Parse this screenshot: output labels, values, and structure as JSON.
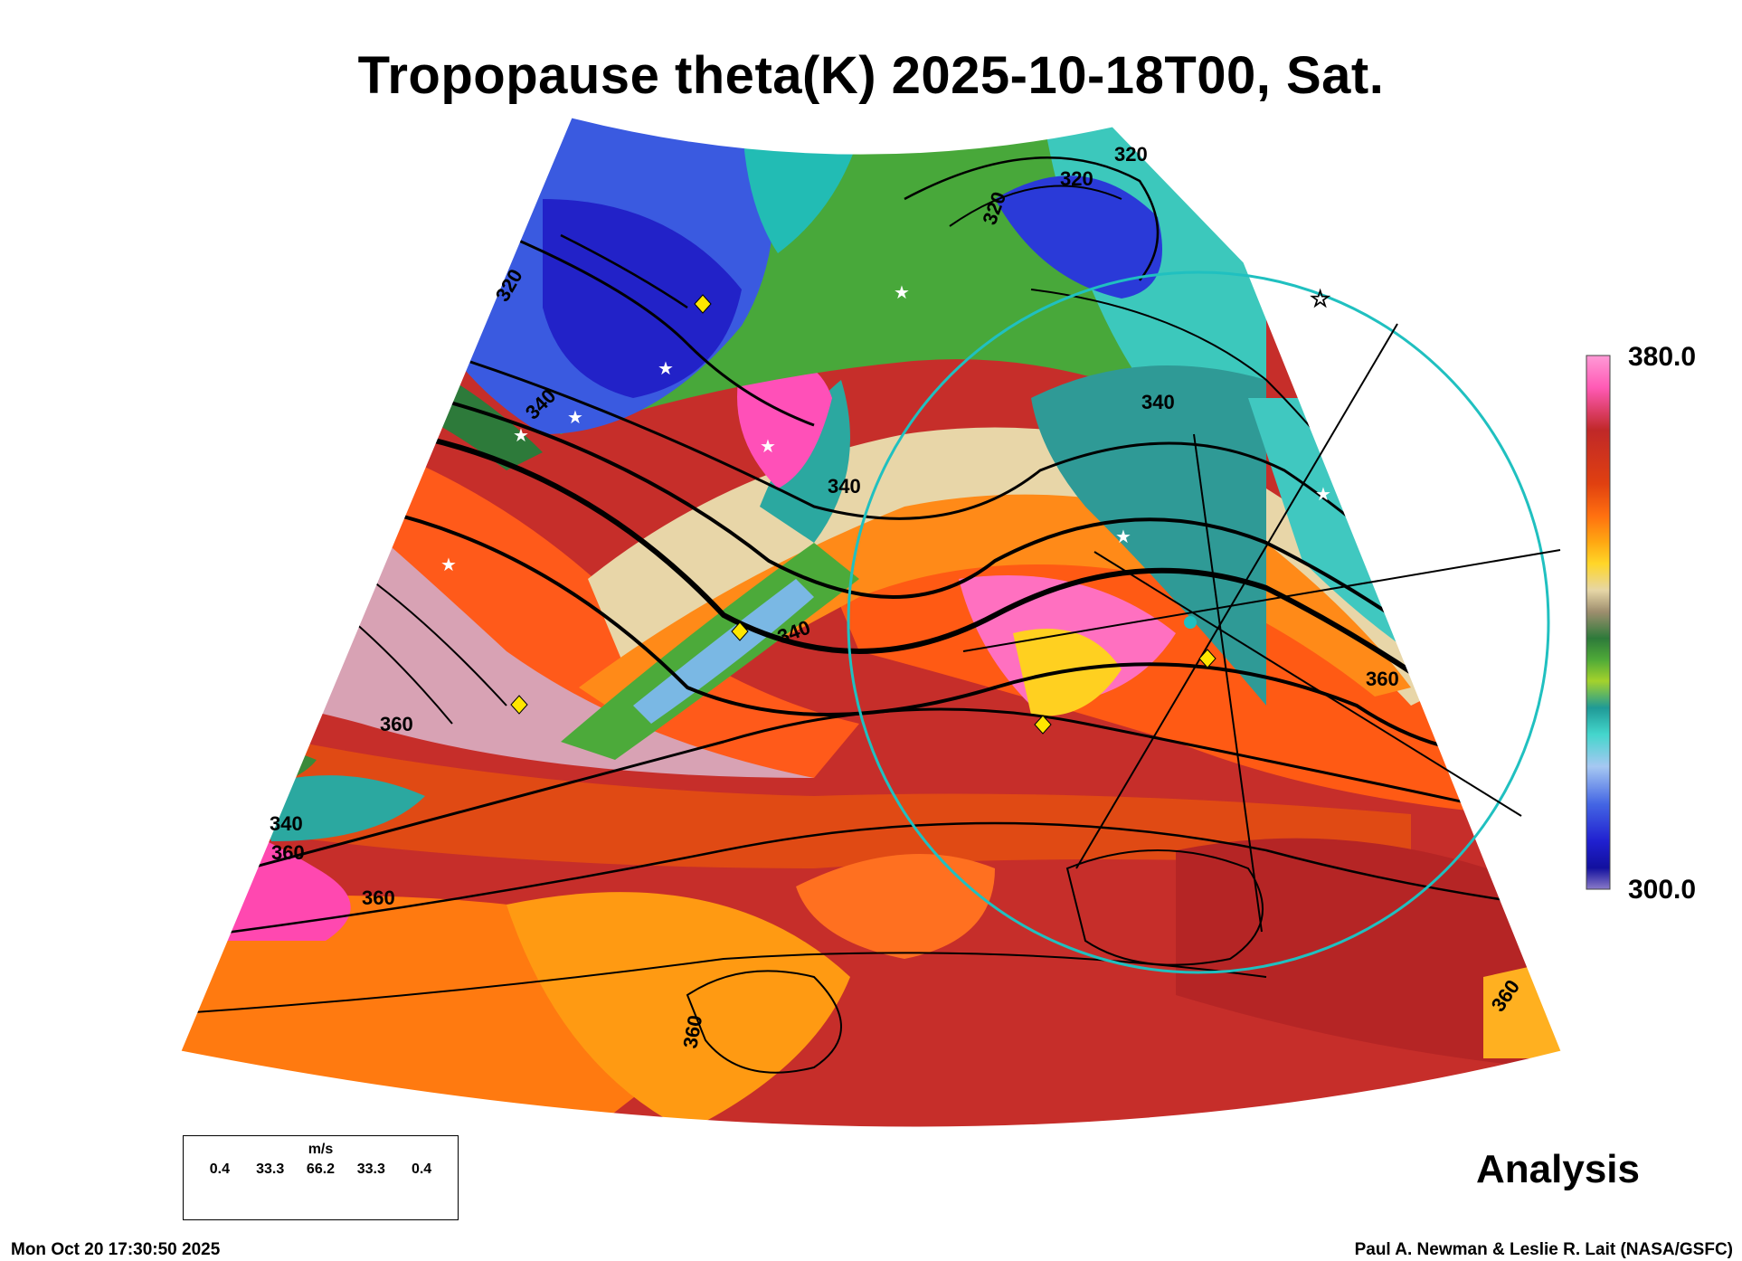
{
  "title": "Tropopause theta(K) 2025-10-18T00, Sat.",
  "colorbar": {
    "max_label": "380.0",
    "min_label": "300.0",
    "colors": [
      "#ff8fd0",
      "#ff60b8",
      "#c42a2a",
      "#d84010",
      "#ff6a10",
      "#ffa010",
      "#ffd020",
      "#e6d8a8",
      "#a09070",
      "#2d7a3a",
      "#50a83a",
      "#a0d02c",
      "#5ab0a8",
      "#40d8d0",
      "#a0c8f0",
      "#4060e0",
      "#2020d0",
      "#1010a0",
      "#8070c0"
    ]
  },
  "contour_labels": [
    "320",
    "320",
    "320",
    "320",
    "340",
    "340",
    "340",
    "340",
    "340",
    "360",
    "360",
    "360",
    "360",
    "360",
    "360"
  ],
  "wind_legend": {
    "unit": "m/s",
    "values": [
      "0.4",
      "33.3",
      "66.2",
      "33.3",
      "0.4"
    ]
  },
  "label_analysis": "Analysis",
  "timestamp": "Mon Oct 20 17:30:50 2025",
  "credit": "Paul A. Newman & Leslie R. Lait (NASA/GSFC)",
  "colors": {
    "ring": "#20c0c0",
    "diamond": "#ffe600",
    "star": "#ffffff"
  }
}
